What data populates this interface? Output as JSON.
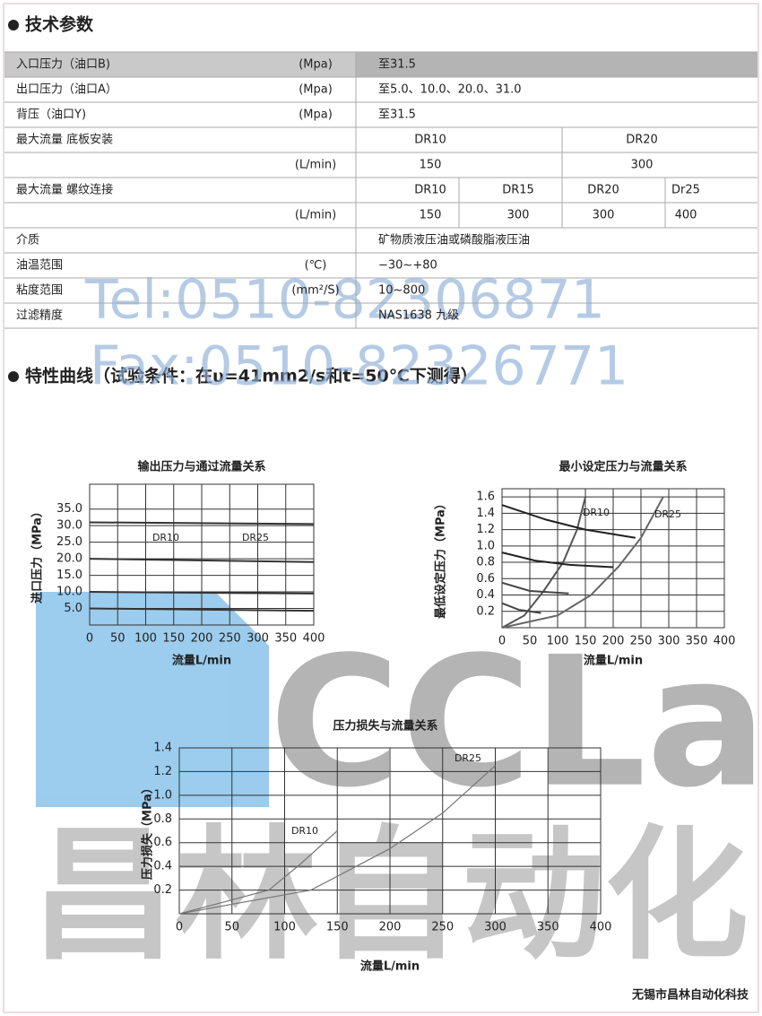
{
  "header": {
    "title": "技术参数"
  },
  "table": {
    "rows": [
      {
        "label": "入口压力（油口B)",
        "unit": "(Mpa)",
        "cells": [
          "至31.5"
        ]
      },
      {
        "label": "出口压力（油口A）",
        "unit": "(Mpa)",
        "cells": [
          "至5.0、10.0、20.0、31.0"
        ]
      },
      {
        "label": "背压（油口Y)",
        "unit": "(Mpa)",
        "cells": [
          "至31.5"
        ]
      },
      {
        "label": "最大流量 底板安装",
        "cells": [
          "DR10",
          "DR20"
        ]
      },
      {
        "unit": "(L/min)",
        "cells": [
          "150",
          "300"
        ]
      },
      {
        "label": "最大流量 螺纹连接",
        "cells": [
          "DR10",
          "DR15",
          "DR20",
          "Dr25"
        ]
      },
      {
        "unit": "(L/min)",
        "cells": [
          "150",
          "300",
          "300",
          "400"
        ]
      },
      {
        "label": "介质",
        "cells": [
          "矿物质液压油或磷酸脂液压油"
        ]
      },
      {
        "label": "油温范围",
        "unit": "(℃)",
        "cells": [
          "−30~+80"
        ]
      },
      {
        "label": "粘度范围",
        "unit": "(mm²/S)",
        "cells": [
          "10~800"
        ]
      },
      {
        "label": "过滤精度",
        "cells": [
          "NAS1638 九级"
        ]
      }
    ]
  },
  "section": {
    "title": "特性曲线（试验条件：在υ=41mm2/s和t=50℃下测得）"
  },
  "chart_data": [
    {
      "type": "line",
      "title": "输出压力与通过流量关系",
      "xlabel": "流量L/min",
      "ylabel": "进口压力（MPa）",
      "xlim": [
        0,
        400
      ],
      "xticks": [
        0,
        50,
        100,
        150,
        200,
        250,
        300,
        350,
        400
      ],
      "ylim": [
        0,
        42.5
      ],
      "yticks": [
        {
          "value": 5,
          "label": "5.0"
        },
        {
          "value": 10,
          "label": "10.0"
        },
        {
          "value": 15,
          "label": "15.0"
        },
        {
          "value": 20,
          "label": "20.0"
        },
        {
          "value": 25,
          "label": "25.0"
        },
        {
          "value": 30,
          "label": "30.0"
        },
        {
          "value": 35,
          "label": "35.0"
        }
      ],
      "grid": true,
      "annotations": [
        "DR10",
        "DR25"
      ],
      "series": [
        {
          "color": "#333333",
          "x": [
            0,
            400
          ],
          "values": [
            31,
            30.5
          ]
        },
        {
          "color": "#333333",
          "x": [
            0,
            400
          ],
          "values": [
            20,
            19
          ]
        },
        {
          "color": "#333333",
          "x": [
            0,
            400
          ],
          "values": [
            10,
            9.5
          ]
        },
        {
          "color": "#333333",
          "x": [
            0,
            400
          ],
          "values": [
            5,
            4.3
          ]
        }
      ]
    },
    {
      "type": "line",
      "title": "最小设定压力与流量关系",
      "xlabel": "流量L/min",
      "ylabel": "最低设定压力（MPa）",
      "xlim": [
        0,
        400
      ],
      "xticks": [
        0,
        50,
        100,
        150,
        200,
        250,
        300,
        350,
        400
      ],
      "ylim": [
        0,
        1.7
      ],
      "yticks": [
        0.2,
        0.4,
        0.6,
        0.8,
        {
          "value": 1,
          "label": "1.0"
        },
        1.2,
        1.4,
        1.6
      ],
      "grid": true,
      "annotations": [
        "DR10",
        "DR25"
      ],
      "series": [
        {
          "color": "#555555",
          "x": [
            0,
            40,
            75,
            110,
            135,
            150
          ],
          "values": [
            0,
            0.15,
            0.45,
            0.8,
            1.2,
            1.6
          ]
        },
        {
          "color": "#666666",
          "x": [
            0,
            100,
            160,
            210,
            250,
            290
          ],
          "values": [
            0,
            0.15,
            0.4,
            0.75,
            1.1,
            1.6
          ]
        },
        {
          "color": "#222222",
          "x": [
            0,
            80,
            150,
            240
          ],
          "values": [
            1.5,
            1.32,
            1.2,
            1.1
          ]
        },
        {
          "color": "#222222",
          "x": [
            0,
            60,
            120,
            200
          ],
          "values": [
            0.92,
            0.82,
            0.77,
            0.74
          ]
        },
        {
          "color": "#444444",
          "x": [
            0,
            50,
            120
          ],
          "values": [
            0.55,
            0.45,
            0.42
          ]
        },
        {
          "color": "#444444",
          "x": [
            0,
            30,
            70
          ],
          "values": [
            0.3,
            0.22,
            0.18
          ]
        }
      ]
    },
    {
      "type": "line",
      "title": "压力损失与流量关系",
      "xlabel": "流量L/min",
      "ylabel": "压力损失（MPa）",
      "xlim": [
        0,
        400
      ],
      "xticks": [
        0,
        50,
        100,
        150,
        200,
        250,
        300,
        350,
        400
      ],
      "ylim": [
        0,
        1.4
      ],
      "yticks": [
        0.2,
        0.4,
        0.6,
        0.8,
        {
          "value": 1,
          "label": "1.0"
        },
        1.2,
        1.4
      ],
      "grid": true,
      "annotations": [
        "DR10",
        "DR25"
      ],
      "series": [
        {
          "color": "#777777",
          "x": [
            0,
            85,
            115,
            150
          ],
          "values": [
            0,
            0.2,
            0.42,
            0.7
          ]
        },
        {
          "color": "#777777",
          "x": [
            0,
            125,
            200,
            250,
            300
          ],
          "values": [
            0,
            0.2,
            0.55,
            0.85,
            1.25
          ]
        }
      ]
    }
  ],
  "watermarks": {
    "tel": "Tel:0510-82306871",
    "fax": "Fax:0510-82326771",
    "logo": "CCLair",
    "brand": "昌林自动化"
  },
  "footer": {
    "text": "无锡市昌林自动化科技"
  }
}
